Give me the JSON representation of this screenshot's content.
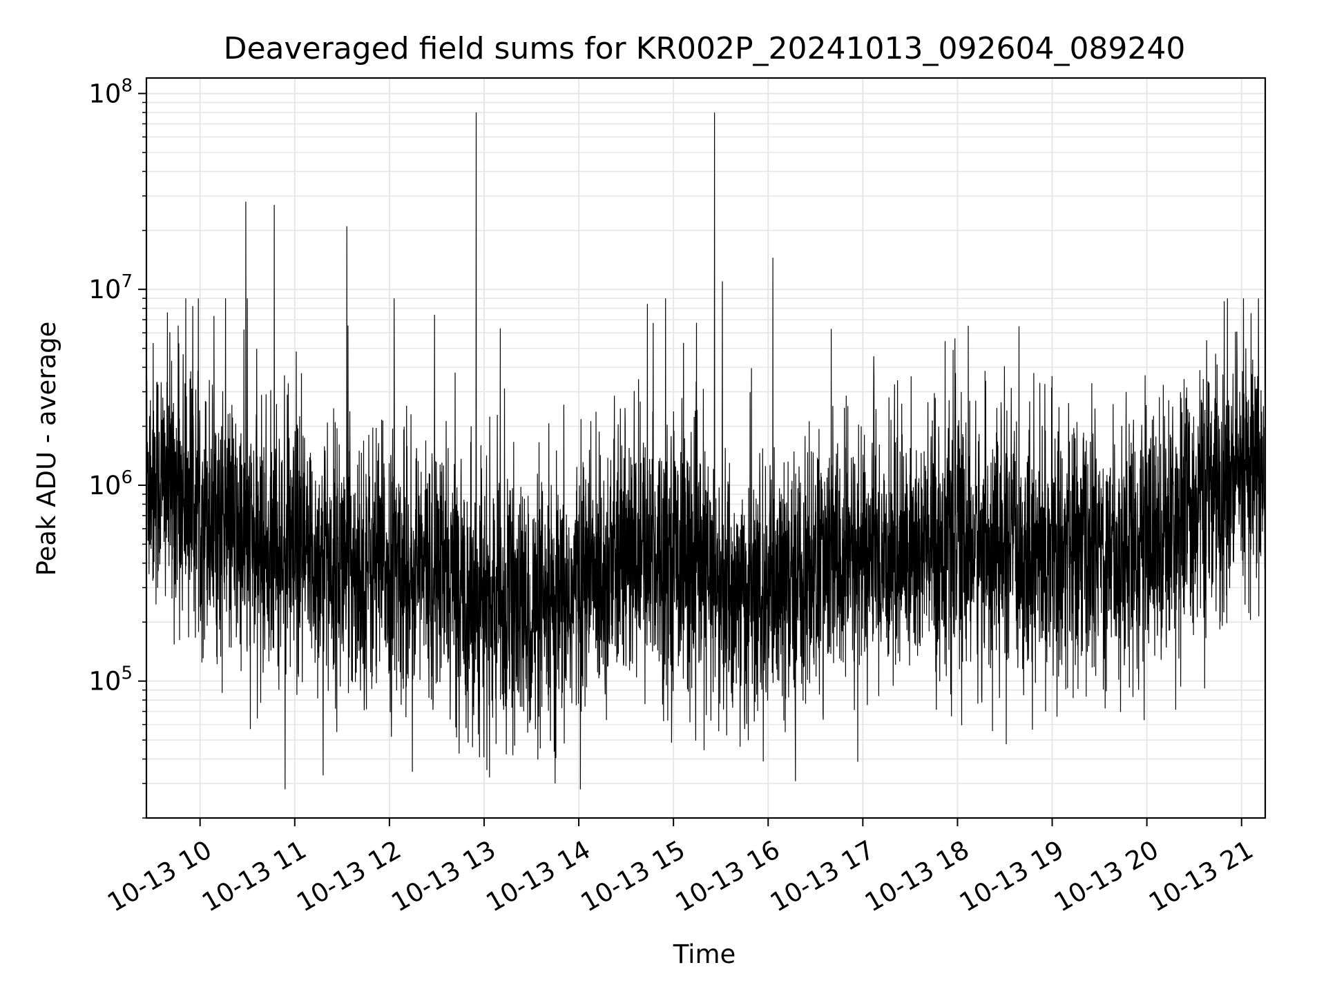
{
  "chart_data": {
    "type": "line",
    "title": "Deaveraged field sums for KR002P_20241013_092604_089240",
    "xlabel": "Time",
    "ylabel": "Peak ADU - average",
    "y_scale": "log",
    "ylim": [
      20000,
      120000000
    ],
    "xlim": [
      "2024-10-13 09:26",
      "2024-10-13 21:15"
    ],
    "x_tick_labels": [
      "10-13 10",
      "10-13 11",
      "10-13 12",
      "10-13 13",
      "10-13 14",
      "10-13 15",
      "10-13 16",
      "10-13 17",
      "10-13 18",
      "10-13 19",
      "10-13 20",
      "10-13 21"
    ],
    "x_ticks": [
      "2024-10-13 10:00",
      "2024-10-13 11:00",
      "2024-10-13 12:00",
      "2024-10-13 13:00",
      "2024-10-13 14:00",
      "2024-10-13 15:00",
      "2024-10-13 16:00",
      "2024-10-13 17:00",
      "2024-10-13 18:00",
      "2024-10-13 19:00",
      "2024-10-13 20:00",
      "2024-10-13 21:00"
    ],
    "y_ticks": [
      {
        "value": 100000,
        "base": "10",
        "exp": "5"
      },
      {
        "value": 1000000,
        "base": "10",
        "exp": "6"
      },
      {
        "value": 10000000,
        "base": "10",
        "exp": "7"
      },
      {
        "value": 100000000,
        "base": "10",
        "exp": "8"
      }
    ],
    "grid": true,
    "line_color": "#000000",
    "grid_color": "#e6e6e6",
    "series": [
      {
        "description_of_shape": "dense noisy time series (~6000 samples) fluctuating mostly between 1e5 and 3e6",
        "envelope": [
          {
            "t": "2024-10-13 09:26",
            "median": 1200000
          },
          {
            "t": "2024-10-13 10:00",
            "median": 800000
          },
          {
            "t": "2024-10-13 10:30",
            "median": 500000
          },
          {
            "t": "2024-10-13 11:00",
            "median": 420000
          },
          {
            "t": "2024-10-13 12:00",
            "median": 380000
          },
          {
            "t": "2024-10-13 12:30",
            "median": 370000
          },
          {
            "t": "2024-10-13 13:00",
            "median": 250000
          },
          {
            "t": "2024-10-13 13:45",
            "median": 200000
          },
          {
            "t": "2024-10-13 14:00",
            "median": 320000
          },
          {
            "t": "2024-10-13 14:30",
            "median": 420000
          },
          {
            "t": "2024-10-13 15:00",
            "median": 480000
          },
          {
            "t": "2024-10-13 15:30",
            "median": 280000
          },
          {
            "t": "2024-10-13 16:00",
            "median": 250000
          },
          {
            "t": "2024-10-13 16:30",
            "median": 380000
          },
          {
            "t": "2024-10-13 17:00",
            "median": 420000
          },
          {
            "t": "2024-10-13 18:00",
            "median": 500000
          },
          {
            "t": "2024-10-13 19:00",
            "median": 450000
          },
          {
            "t": "2024-10-13 20:00",
            "median": 500000
          },
          {
            "t": "2024-10-13 20:30",
            "median": 800000
          },
          {
            "t": "2024-10-13 21:15",
            "median": 1100000
          }
        ],
        "notable_peaks": [
          {
            "t": "2024-10-13 10:29",
            "value": 28000000
          },
          {
            "t": "2024-10-13 10:47",
            "value": 27000000
          },
          {
            "t": "2024-10-13 11:33",
            "value": 21000000
          },
          {
            "t": "2024-10-13 12:55",
            "value": 80000000
          },
          {
            "t": "2024-10-13 15:26",
            "value": 80000000
          },
          {
            "t": "2024-10-13 15:31",
            "value": 11000000
          },
          {
            "t": "2024-10-13 16:03",
            "value": 14500000
          },
          {
            "t": "2024-10-13 12:03",
            "value": 9000000
          },
          {
            "t": "2024-10-13 20:49",
            "value": 8700000
          }
        ],
        "notable_troughs": [
          {
            "t": "2024-10-13 13:45",
            "value": 30000
          },
          {
            "t": "2024-10-13 11:18",
            "value": 33000
          }
        ]
      }
    ]
  }
}
